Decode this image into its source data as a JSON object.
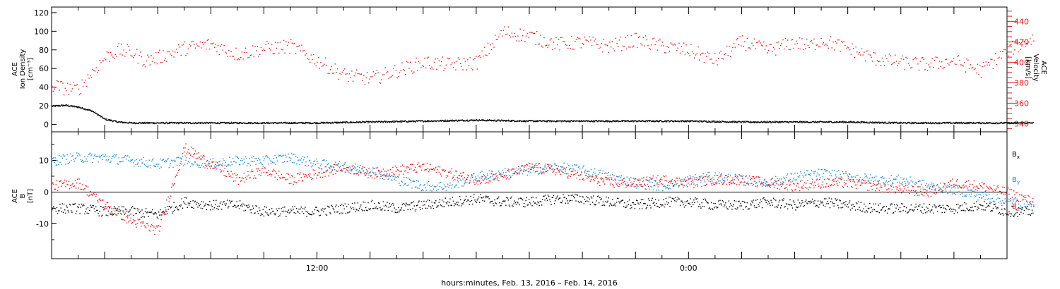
{
  "chart_data": [
    {
      "type": "scatter",
      "panel": "top",
      "left_axis": {
        "title_lines": [
          "ACE",
          "Ion Density",
          "[cm⁻³]"
        ],
        "ylim": [
          -8,
          126
        ],
        "ticks": [
          "0",
          "20",
          "40",
          "60",
          "80",
          "100",
          "120"
        ],
        "tick_values": [
          0,
          20,
          40,
          60,
          80,
          100,
          120
        ]
      },
      "right_axis": {
        "title_lines": [
          "ACE",
          "Velocity",
          "[km/s]"
        ],
        "ylim": [
          332,
          454
        ],
        "ticks": [
          "340",
          "360",
          "380",
          "400",
          "420",
          "440"
        ],
        "tick_values": [
          340,
          360,
          380,
          400,
          420,
          440
        ],
        "color": "#e8161b"
      },
      "series": [
        {
          "quantity": "density",
          "axis": "left",
          "color": "#000000",
          "x": [
            0,
            0.5,
            1,
            1.5,
            2,
            2.5,
            3,
            4,
            6,
            8,
            10,
            12,
            14,
            16,
            18,
            20,
            22,
            24,
            26,
            28,
            30,
            32,
            34,
            36,
            37
          ],
          "y": [
            20,
            21,
            19,
            15,
            6,
            3,
            2,
            2,
            2,
            2,
            2,
            3,
            4,
            5,
            4,
            4,
            4,
            4,
            3,
            3,
            3,
            2,
            2,
            2,
            2
          ]
        },
        {
          "quantity": "velocity",
          "axis": "right",
          "color": "#e8161b",
          "x": [
            0,
            0.5,
            1,
            1.5,
            2,
            2.5,
            3,
            3.5,
            4,
            5,
            6,
            7,
            8,
            9,
            10,
            11,
            12,
            13,
            14,
            15,
            15.5,
            16,
            17,
            18,
            19,
            20,
            21,
            22,
            23,
            24,
            25,
            26,
            27,
            28,
            28.5,
            29,
            30,
            31,
            32,
            33,
            34,
            35,
            36,
            37
          ],
          "y": [
            378,
            375,
            374,
            390,
            405,
            412,
            410,
            402,
            405,
            414,
            418,
            408,
            414,
            416,
            402,
            388,
            384,
            392,
            400,
            398,
            399,
            400,
            430,
            426,
            418,
            420,
            416,
            422,
            416,
            412,
            402,
            420,
            412,
            420,
            416,
            422,
            414,
            404,
            400,
            398,
            402,
            392,
            412,
            424
          ]
        }
      ]
    },
    {
      "type": "scatter",
      "panel": "bottom",
      "left_axis": {
        "title_lines": [
          "ACE",
          "B",
          "[nT]"
        ],
        "ylim": [
          -21,
          19
        ],
        "ticks": [
          "-10",
          "0",
          "10"
        ],
        "tick_values": [
          -10,
          0,
          10
        ]
      },
      "series": [
        {
          "name": "B",
          "name_sub": "x",
          "color": "#000000",
          "x": [
            0,
            1,
            2,
            3,
            4,
            5,
            6,
            7,
            8,
            9,
            10,
            11,
            12,
            13,
            14,
            15,
            16,
            17,
            18,
            19,
            20,
            21,
            22,
            23,
            24,
            25,
            26,
            27,
            28,
            29,
            30,
            31,
            32,
            33,
            34,
            35,
            36,
            37
          ],
          "y": [
            -5,
            -5,
            -6,
            -6,
            -7,
            -3,
            -4,
            -4,
            -6,
            -6,
            -6,
            -5,
            -4,
            -5,
            -4,
            -3,
            -2,
            -3,
            -3,
            -2,
            -2,
            -3,
            -4,
            -3,
            -3,
            -4,
            -4,
            -3,
            -4,
            -3,
            -4,
            -5,
            -5,
            -5,
            -5,
            -4,
            -6,
            -6
          ]
        },
        {
          "name": "B",
          "name_sub": "y",
          "color": "#1f8ad6",
          "x": [
            0,
            1,
            2,
            3,
            4,
            5,
            6,
            7,
            8,
            9,
            10,
            11,
            12,
            13,
            14,
            15,
            16,
            17,
            18,
            19,
            20,
            21,
            22,
            23,
            24,
            25,
            26,
            27,
            28,
            29,
            30,
            31,
            32,
            33,
            34,
            35,
            36,
            37
          ],
          "y": [
            10,
            11,
            11,
            10,
            9,
            10,
            9,
            10,
            10,
            11,
            9,
            8,
            7,
            4,
            2,
            2,
            5,
            6,
            7,
            8,
            7,
            5,
            3,
            2,
            4,
            5,
            4,
            3,
            5,
            6,
            5,
            4,
            4,
            2,
            1,
            -1,
            -3,
            -4
          ]
        },
        {
          "name": "B",
          "name_sub": "z",
          "color": "#e8161b",
          "x": [
            0,
            1,
            2,
            3,
            4,
            5,
            6,
            7,
            8,
            9,
            10,
            11,
            12,
            13,
            14,
            15,
            16,
            17,
            18,
            19,
            20,
            21,
            22,
            23,
            24,
            25,
            26,
            27,
            28,
            29,
            30,
            31,
            32,
            33,
            34,
            35,
            36,
            37
          ],
          "y": [
            2,
            3,
            -4,
            -9,
            -12,
            14,
            9,
            4,
            7,
            4,
            6,
            8,
            6,
            7,
            8,
            6,
            4,
            5,
            8,
            7,
            5,
            3,
            3,
            4,
            3,
            4,
            4,
            3,
            2,
            3,
            3,
            2,
            1,
            0,
            3,
            2,
            0,
            -3
          ]
        }
      ]
    }
  ],
  "xaxis": {
    "label": "hours:minutes, Feb. 13, 2016 – Feb. 14, 2016",
    "tick_labels": [
      {
        "t": 10,
        "text": "12:00"
      },
      {
        "t": 24,
        "text": "0:00"
      }
    ],
    "xlim": [
      0,
      36
    ]
  }
}
